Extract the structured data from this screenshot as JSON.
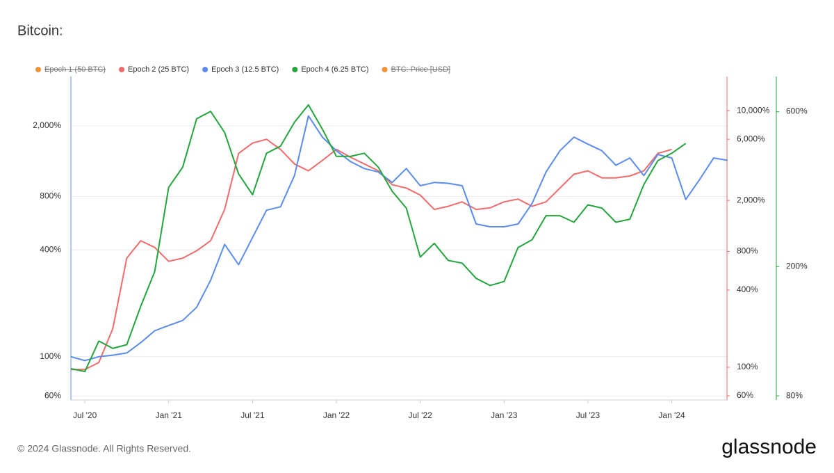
{
  "chart_data": {
    "type": "line",
    "title": "Bitcoin:",
    "log_scale": true,
    "grid": true,
    "x": [
      "2020-06",
      "2020-07",
      "2020-08",
      "2020-09",
      "2020-10",
      "2020-11",
      "2020-12",
      "2021-01",
      "2021-02",
      "2021-03",
      "2021-04",
      "2021-05",
      "2021-06",
      "2021-07",
      "2021-08",
      "2021-09",
      "2021-10",
      "2021-11",
      "2021-12",
      "2022-01",
      "2022-02",
      "2022-03",
      "2022-04",
      "2022-05",
      "2022-06",
      "2022-07",
      "2022-08",
      "2022-09",
      "2022-10",
      "2022-11",
      "2022-12",
      "2023-01",
      "2023-02",
      "2023-03",
      "2023-04",
      "2023-05",
      "2023-06",
      "2023-07",
      "2023-08",
      "2023-09",
      "2023-10",
      "2023-11",
      "2023-12",
      "2024-01",
      "2024-02",
      "2024-03",
      "2024-04",
      "2024-05"
    ],
    "xlim": [
      "2020-06",
      "2024-05"
    ],
    "xticks": [
      {
        "value": "2020-07",
        "label": "Jul '20"
      },
      {
        "value": "2021-01",
        "label": "Jan '21"
      },
      {
        "value": "2021-07",
        "label": "Jul '21"
      },
      {
        "value": "2022-01",
        "label": "Jan '22"
      },
      {
        "value": "2022-07",
        "label": "Jul '22"
      },
      {
        "value": "2023-01",
        "label": "Jan '23"
      },
      {
        "value": "2023-07",
        "label": "Jul '23"
      },
      {
        "value": "2024-01",
        "label": "Jan '24"
      }
    ],
    "ylim": [
      57,
      3800
    ],
    "yticks": [
      {
        "value": 60,
        "label": "60%"
      },
      {
        "value": 100,
        "label": "100%"
      },
      {
        "value": 400,
        "label": "400%"
      },
      {
        "value": 800,
        "label": "800%"
      },
      {
        "value": 2000,
        "label": "2,000%"
      }
    ],
    "y2lim": [
      55.6,
      18500
    ],
    "y2ticks": [
      {
        "value": 60,
        "label": "60%"
      },
      {
        "value": 100,
        "label": "100%"
      },
      {
        "value": 400,
        "label": "400%"
      },
      {
        "value": 800,
        "label": "800%"
      },
      {
        "value": 2000,
        "label": "2,000%"
      },
      {
        "value": 6000,
        "label": "6,000%"
      },
      {
        "value": 10000,
        "label": "10,000%"
      }
    ],
    "y3lim": [
      77.7,
      770
    ],
    "y3ticks": [
      {
        "value": 80,
        "label": "80%"
      },
      {
        "value": 200,
        "label": "200%"
      },
      {
        "value": 600,
        "label": "600%"
      }
    ],
    "hidden_legend": [
      {
        "name": "Epoch 1 (50 BTC)",
        "color": "#f39237"
      },
      {
        "name": "BTC: Price [USD]",
        "color": "#f39237"
      }
    ],
    "series": [
      {
        "name": "Epoch 2 (25 BTC)",
        "color": "#f26b6b",
        "axis": "y2",
        "values": [
          96,
          96,
          109,
          200,
          710,
          970,
          860,
          670,
          710,
          810,
          970,
          1700,
          4650,
          5600,
          6000,
          5000,
          3850,
          3400,
          4100,
          5000,
          4350,
          3850,
          3400,
          2650,
          2500,
          2200,
          1700,
          1800,
          1950,
          1700,
          1750,
          1950,
          2050,
          1800,
          1950,
          2500,
          3200,
          3400,
          3000,
          3000,
          3100,
          3400,
          4650,
          5000,
          null,
          null,
          null,
          null
        ]
      },
      {
        "name": "Epoch 3 (12.5 BTC)",
        "color": "#5a8cf0",
        "axis": "y",
        "values": [
          100,
          95,
          100,
          102,
          105,
          120,
          140,
          150,
          160,
          190,
          270,
          430,
          330,
          470,
          670,
          700,
          1050,
          2280,
          1730,
          1450,
          1260,
          1150,
          1100,
          960,
          1150,
          920,
          960,
          950,
          920,
          560,
          540,
          540,
          560,
          730,
          1100,
          1450,
          1730,
          1580,
          1450,
          1200,
          1320,
          1050,
          1380,
          1320,
          770,
          1000,
          1320,
          1280
        ]
      },
      {
        "name": "Epoch 4 (6.25 BTC)",
        "color": "#22a53a",
        "axis": "y3",
        "values": [
          97,
          95,
          118,
          112,
          115,
          151,
          193,
          351,
          405,
          571,
          601,
          518,
          386,
          333,
          447,
          470,
          557,
          630,
          530,
          437,
          437,
          447,
          405,
          341,
          303,
          214,
          236,
          209,
          205,
          184,
          175,
          180,
          229,
          242,
          287,
          287,
          274,
          310,
          303,
          274,
          280,
          358,
          424,
          447,
          479,
          null,
          null,
          null
        ]
      }
    ],
    "footer": "© 2024 Glassnode. All Rights Reserved.",
    "brand": "glassnode"
  }
}
